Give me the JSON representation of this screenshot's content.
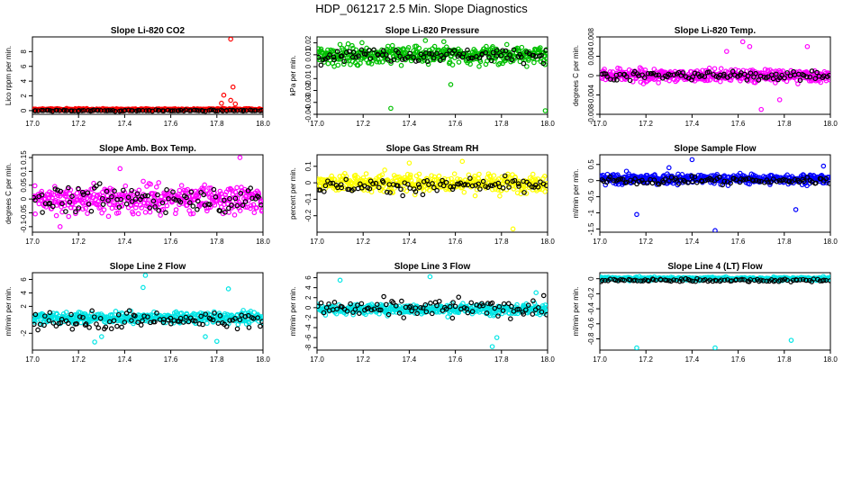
{
  "title": "HDP_061217  2.5 Min. Slope Diagnostics",
  "chart_data": [
    {
      "type": "scatter",
      "title": "Slope Li-820 CO2",
      "ylabel": "Lico rppm per min.",
      "color": "#ff0000",
      "xlim": [
        17.0,
        18.0
      ],
      "ylim": [
        -0.5,
        10
      ],
      "yticks": [
        0,
        2,
        4,
        6,
        8
      ],
      "xticks": [
        17.0,
        17.2,
        17.4,
        17.6,
        17.8,
        18.0
      ],
      "center": 0.15,
      "spread": 0.12,
      "black_center": 0.0,
      "black_spread": 0.08,
      "outliers": [
        [
          17.86,
          9.7
        ],
        [
          17.87,
          3.2
        ],
        [
          17.83,
          2.1
        ],
        [
          17.86,
          1.4
        ],
        [
          17.88,
          0.9
        ],
        [
          17.82,
          1.0
        ]
      ]
    },
    {
      "type": "scatter",
      "title": "Slope Li-820 Pressure",
      "ylabel": "kPa per min.",
      "color": "#00c000",
      "xlim": [
        17.0,
        18.0
      ],
      "ylim": [
        -0.04,
        0.025
      ],
      "yticks": [
        -0.04,
        -0.03,
        -0.02,
        -0.01,
        0.0,
        0.01,
        0.02
      ],
      "xticks": [
        17.0,
        17.2,
        17.4,
        17.6,
        17.8,
        18.0
      ],
      "center": 0.01,
      "spread": 0.007,
      "black_center": 0.01,
      "black_spread": 0.005,
      "outliers": [
        [
          17.32,
          -0.035
        ],
        [
          17.99,
          -0.037
        ],
        [
          17.58,
          -0.015
        ],
        [
          17.47,
          0.022
        ],
        [
          17.55,
          0.021
        ]
      ]
    },
    {
      "type": "scatter",
      "title": "Slope Li-820 Temp.",
      "ylabel": "degrees C per min.",
      "color": "#ff00ff",
      "xlim": [
        17.0,
        18.0
      ],
      "ylim": [
        -0.008,
        0.008
      ],
      "yticks": [
        -0.008,
        -0.004,
        0.0,
        0.004,
        0.008
      ],
      "xticks": [
        17.0,
        17.2,
        17.4,
        17.6,
        17.8,
        18.0
      ],
      "center": 0.0,
      "spread": 0.0012,
      "black_center": 0.0,
      "black_spread": 0.0008,
      "outliers": [
        [
          17.62,
          0.007
        ],
        [
          17.7,
          -0.007
        ],
        [
          17.55,
          0.005
        ],
        [
          17.78,
          -0.005
        ],
        [
          17.65,
          0.006
        ],
        [
          17.9,
          0.006
        ]
      ]
    },
    {
      "type": "scatter",
      "title": "Slope Amb. Box Temp.",
      "ylabel": "degrees C per min.",
      "color": "#ff00ff",
      "xlim": [
        17.0,
        18.0
      ],
      "ylim": [
        -0.12,
        0.16
      ],
      "yticks": [
        -0.1,
        -0.05,
        0.0,
        0.05,
        0.1,
        0.15
      ],
      "xticks": [
        17.0,
        17.2,
        17.4,
        17.6,
        17.8,
        18.0
      ],
      "center": 0.0,
      "spread": 0.045,
      "black_center": 0.0,
      "black_spread": 0.04,
      "outliers": [
        [
          17.9,
          0.15
        ],
        [
          17.12,
          -0.1
        ],
        [
          17.38,
          0.11
        ]
      ]
    },
    {
      "type": "scatter",
      "title": "Slope Gas Stream RH",
      "ylabel": "percent per min.",
      "color": "#ffff00",
      "xlim": [
        17.0,
        18.0
      ],
      "ylim": [
        -0.3,
        0.17
      ],
      "yticks": [
        -0.2,
        -0.1,
        0.0,
        0.1
      ],
      "xticks": [
        17.0,
        17.2,
        17.4,
        17.6,
        17.8,
        18.0
      ],
      "center": 0.0,
      "spread": 0.05,
      "black_center": -0.02,
      "black_spread": 0.04,
      "outliers": [
        [
          17.85,
          -0.28
        ],
        [
          17.63,
          0.13
        ],
        [
          17.4,
          0.12
        ]
      ]
    },
    {
      "type": "scatter",
      "title": "Slope Sample Flow",
      "ylabel": "ml/min per min.",
      "color": "#0000ff",
      "xlim": [
        17.0,
        18.0
      ],
      "ylim": [
        -1.6,
        0.8
      ],
      "yticks": [
        -1.5,
        -1.0,
        -0.5,
        0.0,
        0.5
      ],
      "xticks": [
        17.0,
        17.2,
        17.4,
        17.6,
        17.8,
        18.0
      ],
      "center": 0.05,
      "spread": 0.14,
      "black_center": 0.0,
      "black_spread": 0.1,
      "outliers": [
        [
          17.5,
          -1.55
        ],
        [
          17.16,
          -1.05
        ],
        [
          17.4,
          0.65
        ],
        [
          17.85,
          -0.9
        ],
        [
          17.3,
          0.4
        ],
        [
          17.97,
          0.45
        ]
      ]
    },
    {
      "type": "scatter",
      "title": "Slope Line 2 Flow",
      "ylabel": "ml/min per min.",
      "color": "#00e5e5",
      "xlim": [
        17.0,
        18.0
      ],
      "ylim": [
        -4.5,
        7
      ],
      "yticks": [
        -2,
        2,
        4,
        6
      ],
      "xticks": [
        17.0,
        17.2,
        17.4,
        17.6,
        17.8,
        18.0
      ],
      "center": 0.3,
      "spread": 0.7,
      "black_center": 0.0,
      "black_spread": 1.3,
      "outliers": [
        [
          17.49,
          6.6
        ],
        [
          17.48,
          4.8
        ],
        [
          17.27,
          -3.3
        ],
        [
          17.3,
          -2.5
        ],
        [
          17.85,
          4.6
        ],
        [
          17.75,
          -2.5
        ],
        [
          17.8,
          -3.2
        ]
      ]
    },
    {
      "type": "scatter",
      "title": "Slope Line 3 Flow",
      "ylabel": "ml/min per min.",
      "color": "#00e5e5",
      "xlim": [
        17.0,
        18.0
      ],
      "ylim": [
        -8.5,
        7
      ],
      "yticks": [
        -8,
        -6,
        -4,
        -2,
        0,
        2,
        4,
        6
      ],
      "xticks": [
        17.0,
        17.2,
        17.4,
        17.6,
        17.8,
        18.0
      ],
      "center": -0.3,
      "spread": 0.9,
      "black_center": -0.2,
      "black_spread": 1.6,
      "outliers": [
        [
          17.49,
          6.2
        ],
        [
          17.76,
          -7.8
        ],
        [
          17.78,
          -6.0
        ],
        [
          17.1,
          5.5
        ],
        [
          17.95,
          3.0
        ]
      ]
    },
    {
      "type": "scatter",
      "title": "Slope Line 4 (LT) Flow",
      "ylabel": "ml/min per min.",
      "color": "#00e5e5",
      "xlim": [
        17.0,
        18.0
      ],
      "ylim": [
        -0.95,
        0.08
      ],
      "yticks": [
        -0.8,
        -0.6,
        -0.4,
        -0.2,
        0.0
      ],
      "xticks": [
        17.0,
        17.2,
        17.4,
        17.6,
        17.8,
        18.0
      ],
      "center": 0.0,
      "spread": 0.02,
      "black_center": -0.02,
      "black_spread": 0.02,
      "outliers": [
        [
          17.16,
          -0.92
        ],
        [
          17.5,
          -0.92
        ],
        [
          17.83,
          -0.82
        ]
      ]
    }
  ]
}
